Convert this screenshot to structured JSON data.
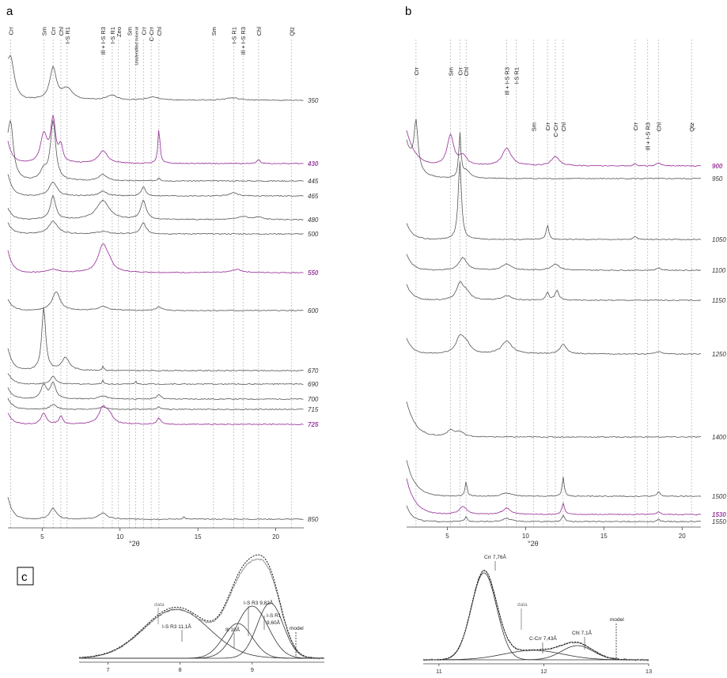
{
  "panels": {
    "a": {
      "letter": "a",
      "xlabel": "°2θ",
      "x_ticks": [
        5,
        10,
        15,
        20
      ],
      "xlim": [
        2.8,
        21.8
      ],
      "mineral_lines": [
        {
          "label": "Crr",
          "x": 2.98
        },
        {
          "label": "Sm",
          "x": 5.1
        },
        {
          "label": "Crr",
          "x": 5.7
        },
        {
          "label": "Chl",
          "x": 6.2
        },
        {
          "label": "I-S R1",
          "x": 6.6
        },
        {
          "label": "Ill + I-S R3",
          "x": 8.9
        },
        {
          "label": "I-S R1",
          "x": 9.5
        },
        {
          "label": "Zeo",
          "x": 9.9
        },
        {
          "label": "Sm",
          "x": 10.6
        },
        {
          "label": "Unidentified mineral",
          "x": 11.0
        },
        {
          "label": "Crr",
          "x": 11.5
        },
        {
          "label": "C-Crr",
          "x": 12.0
        },
        {
          "label": "Chl",
          "x": 12.5
        },
        {
          "label": "Sm",
          "x": 16.0
        },
        {
          "label": "I-S R1",
          "x": 17.3
        },
        {
          "label": "Ill + I-S R3",
          "x": 17.9
        },
        {
          "label": "Chl",
          "x": 18.9
        },
        {
          "label": "Qtz",
          "x": 21.0
        }
      ],
      "traces": [
        {
          "label": "350",
          "highlight": false
        },
        {
          "label": "430",
          "highlight": true
        },
        {
          "label": "445",
          "highlight": false
        },
        {
          "label": "465",
          "highlight": false
        },
        {
          "label": "480",
          "highlight": false
        },
        {
          "label": "500",
          "highlight": false
        },
        {
          "label": "550",
          "highlight": true
        },
        {
          "label": "600",
          "highlight": false
        },
        {
          "label": "670",
          "highlight": false
        },
        {
          "label": "690",
          "highlight": false
        },
        {
          "label": "700",
          "highlight": false
        },
        {
          "label": "715",
          "highlight": false
        },
        {
          "label": "725",
          "highlight": true
        },
        {
          "label": "850",
          "highlight": false
        }
      ]
    },
    "b": {
      "letter": "b",
      "xlabel": "°2θ",
      "x_ticks": [
        5,
        10,
        15,
        20
      ],
      "xlim": [
        2.4,
        21.2
      ],
      "mineral_lines": [
        {
          "label": "Crr",
          "x": 3.0
        },
        {
          "label": "Sm",
          "x": 5.2
        },
        {
          "label": "Crr",
          "x": 5.8
        },
        {
          "label": "Chl",
          "x": 6.2
        },
        {
          "label": "Ill + I-S R3",
          "x": 8.8
        },
        {
          "label": "I-S R1",
          "x": 9.4
        },
        {
          "label": "Sm",
          "x": 10.5
        },
        {
          "label": "Crr",
          "x": 11.4
        },
        {
          "label": "C-Crr",
          "x": 11.9
        },
        {
          "label": "Chl",
          "x": 12.4
        },
        {
          "label": "Crr",
          "x": 17.0
        },
        {
          "label": "Ill + I-S R3",
          "x": 17.8
        },
        {
          "label": "Chl",
          "x": 18.5
        },
        {
          "label": "Qtz",
          "x": 20.6
        }
      ],
      "traces": [
        {
          "label": "900",
          "highlight": true
        },
        {
          "label": "950",
          "highlight": false
        },
        {
          "label": "1050",
          "highlight": false
        },
        {
          "label": "1100",
          "highlight": false
        },
        {
          "label": "1150",
          "highlight": false
        },
        {
          "label": "1250",
          "highlight": false
        },
        {
          "label": "1400",
          "highlight": false
        },
        {
          "label": "1500",
          "highlight": false
        },
        {
          "label": "1530",
          "highlight": true
        },
        {
          "label": "1550",
          "highlight": false
        }
      ]
    },
    "c": {
      "letter": "c",
      "left": {
        "x_ticks": [
          7,
          8,
          9
        ],
        "xlim": [
          6.6,
          10.0
        ],
        "annotations": [
          "data",
          "I-S R3 11,1Å",
          "Ill 10Å",
          "I-S R3 9,82Å",
          "I-S R1",
          "9,60Å",
          "model"
        ]
      },
      "right": {
        "x_ticks": [
          11,
          12,
          13
        ],
        "xlim": [
          10.85,
          13.0
        ],
        "annotations": [
          "Crr 7,76Å",
          "data",
          "C-Crr 7,43Å",
          "Chl 7,1Å",
          "model"
        ]
      }
    }
  },
  "colors": {
    "trace": "#555555",
    "highlight": "#a040a0",
    "guide": "#b0b0b0",
    "fit": "#333333"
  }
}
